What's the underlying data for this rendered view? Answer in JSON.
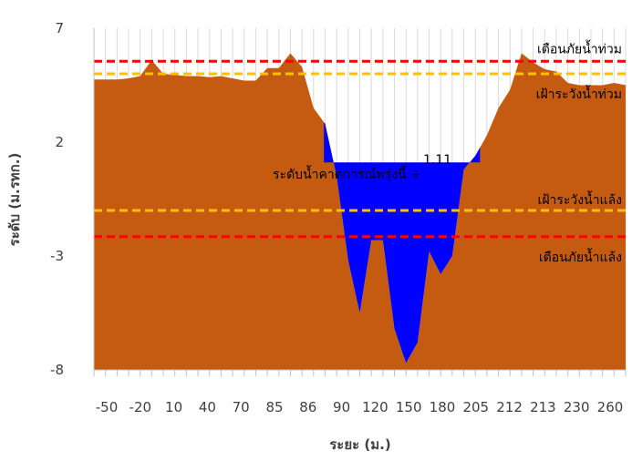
{
  "chart_data": {
    "type": "area",
    "xlabel": "ระยะ (ม.)",
    "ylabel": "ระดับ (ม.รทก.)",
    "ylim": [
      -8,
      7
    ],
    "yticks": [
      7,
      2,
      -3,
      -8
    ],
    "grid": "vertical",
    "x_tick_labels": [
      "-50",
      "-20",
      "10",
      "40",
      "70",
      "85",
      "86",
      "90",
      "120",
      "150",
      "180",
      "205",
      "212",
      "213",
      "230",
      "260"
    ],
    "series": [
      {
        "role": "ground_profile",
        "color": "#C55A11",
        "values": [
          4.75,
          4.75,
          4.75,
          4.8,
          4.9,
          5.6,
          5.0,
          4.95,
          4.9,
          4.9,
          4.85,
          4.9,
          4.8,
          4.7,
          4.7,
          5.25,
          5.25,
          5.9,
          5.3,
          3.5,
          2.8,
          0.5,
          -3.2,
          -5.5,
          -2.3,
          -2.3,
          -6.2,
          -7.7,
          -6.8,
          -2.8,
          -3.8,
          -3.0,
          0.8,
          1.4,
          2.3,
          3.5,
          4.3,
          5.9,
          5.5,
          5.2,
          5.1,
          4.6,
          4.5,
          4.5,
          4.5,
          4.6,
          4.5
        ]
      },
      {
        "role": "water_level_forecast",
        "color": "#0000FF",
        "value": 1.11,
        "x_index_range": [
          19.9,
          33.4
        ]
      }
    ],
    "reference_lines": [
      {
        "label": "เตือนภัยน้ำท่วม",
        "value": 5.55,
        "color": "#FF0000"
      },
      {
        "label": "เฝ้าระวังน้ำท่วม",
        "value": 5.0,
        "color": "#FFC000"
      },
      {
        "label": "เฝ้าระวังน้ำแล้ง",
        "value": -1.0,
        "color": "#FFC000"
      },
      {
        "label": "เตือนภัยน้ำแล้ง",
        "value": -2.15,
        "color": "#FF0000"
      }
    ],
    "annotations": {
      "water_label": "ระดับน้ำคาดการณ์พรุ่งนี้ +",
      "water_value": "1.11"
    }
  }
}
